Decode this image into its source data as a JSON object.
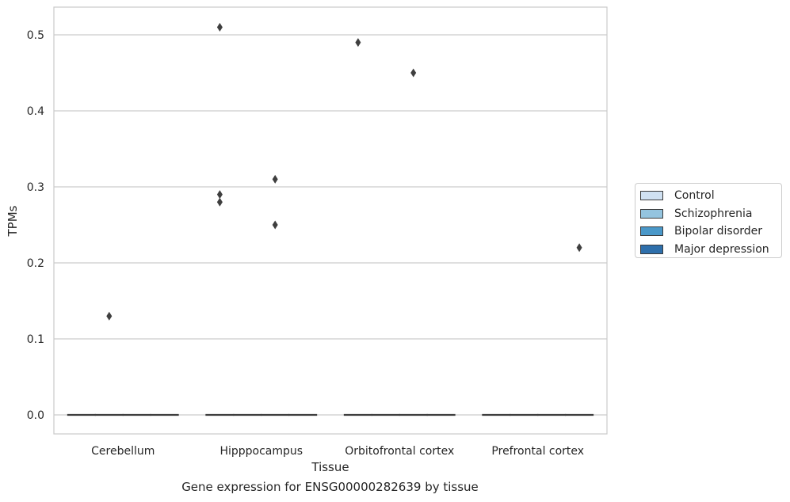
{
  "chart_data": {
    "type": "box",
    "xlabel": "Tissue",
    "ylabel": "TPMs",
    "caption": "Gene expression for ENSG00000282639 by tissue",
    "categories": [
      "Cerebellum",
      "Hipppocampus",
      "Orbitofrontal cortex",
      "Prefrontal cortex"
    ],
    "ylim": [
      -0.025,
      0.537
    ],
    "yticks": [
      0.0,
      0.1,
      0.2,
      0.3,
      0.4,
      0.5
    ],
    "ytick_labels": [
      "0.0",
      "0.1",
      "0.2",
      "0.3",
      "0.4",
      "0.5"
    ],
    "grid": "horizontal",
    "legend_position": "right",
    "series": [
      {
        "name": "Control",
        "color": "#d0e1f2",
        "median": [
          0,
          0,
          0,
          0
        ],
        "q1": [
          0,
          0,
          0,
          0
        ],
        "q3": [
          0,
          0,
          0,
          0
        ],
        "outliers": [
          [],
          [
            0.51,
            0.29,
            0.28
          ],
          [
            0.49
          ],
          []
        ]
      },
      {
        "name": "Schizophrenia",
        "color": "#94c4df",
        "median": [
          0,
          0,
          0,
          0
        ],
        "q1": [
          0,
          0,
          0,
          0
        ],
        "q3": [
          0,
          0,
          0,
          0
        ],
        "outliers": [
          [
            0.13
          ],
          [],
          [],
          []
        ]
      },
      {
        "name": "Bipolar disorder",
        "color": "#4a98c9",
        "median": [
          0,
          0,
          0,
          0
        ],
        "q1": [
          0,
          0,
          0,
          0
        ],
        "q3": [
          0,
          0,
          0,
          0
        ],
        "outliers": [
          [],
          [
            0.31,
            0.25
          ],
          [
            0.45
          ],
          []
        ]
      },
      {
        "name": "Major depression",
        "color": "#2e6fab",
        "median": [
          0,
          0,
          0,
          0
        ],
        "q1": [
          0,
          0,
          0,
          0
        ],
        "q3": [
          0,
          0,
          0,
          0
        ],
        "outliers": [
          [],
          [],
          [],
          [
            0.22
          ]
        ]
      }
    ]
  }
}
